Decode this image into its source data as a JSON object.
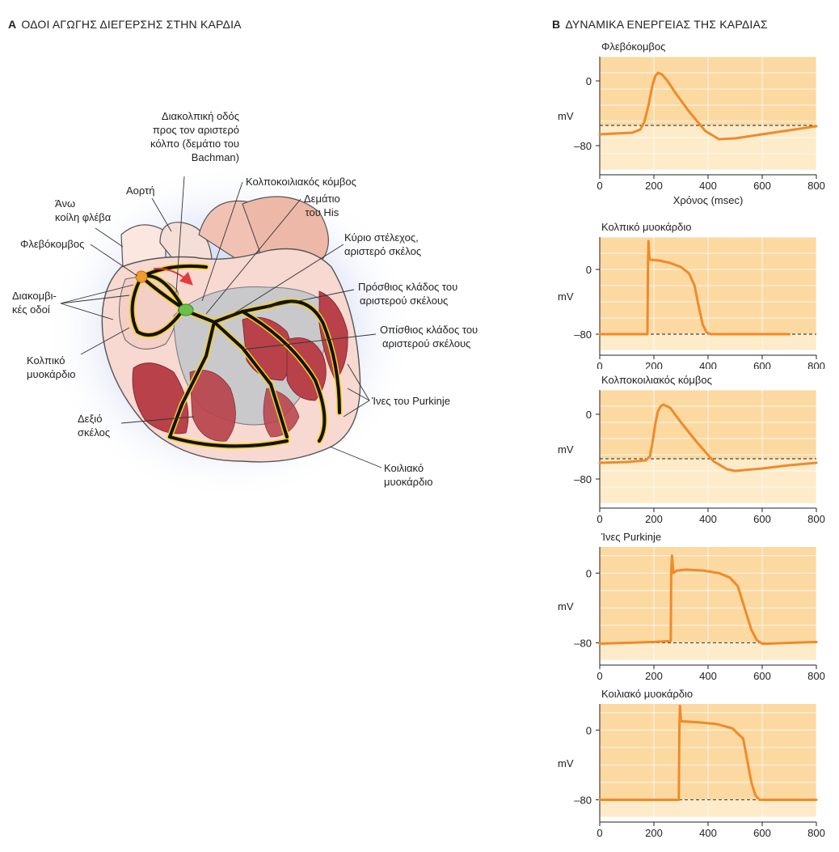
{
  "panel_a": {
    "letter": "A",
    "title": "ΟΔΟΙ ΑΓΩΓΗΣ ΔΙΕΓΕΡΣΗΣ ΣΤΗΝ ΚΑΡΔΙΑ",
    "labels": {
      "bachman_1": "Διακολπική οδός",
      "bachman_2": "προς τον αριστερό",
      "bachman_3": "κόλπο (δεμάτιο του",
      "bachman_4": "Bachman)",
      "aorta": "Αορτή",
      "svc_1": "Άνω",
      "svc_2": "κοίλη φλέβα",
      "sa_node": "Φλεβόκομβος",
      "internodal_1": "Διακομβι-",
      "internodal_2": "κές οδοί",
      "atrial_1": "Κολπικό",
      "atrial_2": "μυοκάρδιο",
      "right_branch_1": "Δεξιό",
      "right_branch_2": "σκέλος",
      "av_node": "Κολποκοιλιακός κόμβος",
      "his_1": "Δεμάτιο",
      "his_2": "του His",
      "left_main_1": "Κύριο στέλεχος,",
      "left_main_2": "αριστερό σκέλος",
      "anterior_1": "Πρόσθιος κλάδος του",
      "anterior_2": "αριστερού σκέλους",
      "posterior_1": "Οπίσθιος κλάδος του",
      "posterior_2": "αριστερού σκέλους",
      "purkinje": "Ίνες του Purkinje",
      "ventricular_1": "Κοιλιακό",
      "ventricular_2": "μυοκάρδιο"
    }
  },
  "panel_b": {
    "letter": "B",
    "title": "ΔΥΝΑΜΙΚΑ ΕΝΕΡΓΕΙΑΣ ΤΗΣ ΚΑΡΔΙΑΣ"
  },
  "colors": {
    "plot_bg": "#fbd9a1",
    "plot_bg_low": "#fdebc9",
    "trace": "#f08a2a",
    "sa_node": "#f39a2e",
    "av_node": "#6cc04a",
    "fiber_yellow": "#f5d21a"
  },
  "chart_data": [
    {
      "type": "line",
      "title": "Φλεβόκομβος",
      "ylabel": "mV",
      "xlabel": "Χρόνος (msec)",
      "yticks": [
        "0",
        "–80"
      ],
      "xticks": [
        "0",
        "200",
        "400",
        "600",
        "800"
      ],
      "xlim": [
        0,
        800
      ],
      "ylim": [
        -110,
        30
      ],
      "threshold": -55,
      "x": [
        0,
        60,
        120,
        150,
        165,
        180,
        195,
        205,
        215,
        230,
        250,
        280,
        330,
        390,
        440,
        500,
        600,
        700,
        800
      ],
      "y": [
        -66,
        -65,
        -64,
        -60,
        -50,
        -30,
        -5,
        6,
        10,
        8,
        0,
        -15,
        -38,
        -62,
        -72,
        -71,
        -66,
        -61,
        -56
      ]
    },
    {
      "type": "line",
      "title": "Κολπικό μυοκάρδιο",
      "ylabel": "mV",
      "xlabel": "",
      "yticks": [
        "0",
        "–80"
      ],
      "xticks": [
        "0",
        "200",
        "400",
        "600",
        "800"
      ],
      "xlim": [
        0,
        800
      ],
      "ylim": [
        -100,
        40
      ],
      "threshold": -80,
      "x": [
        0,
        100,
        176,
        178,
        180,
        184,
        190,
        220,
        260,
        300,
        330,
        350,
        365,
        380,
        395,
        410,
        440,
        500,
        600,
        700
      ],
      "y": [
        -80,
        -80,
        -80,
        0,
        35,
        12,
        12,
        11,
        8,
        3,
        -5,
        -20,
        -45,
        -68,
        -78,
        -80,
        -80,
        -80,
        -80,
        -80
      ]
    },
    {
      "type": "line",
      "title": "Κολποκοιλιακός κόμβος",
      "ylabel": "mV",
      "xlabel": "",
      "yticks": [
        "0",
        "–80"
      ],
      "xticks": [
        "0",
        "200",
        "400",
        "600",
        "800"
      ],
      "xlim": [
        0,
        800
      ],
      "ylim": [
        -110,
        30
      ],
      "threshold": -55,
      "x": [
        0,
        100,
        170,
        185,
        195,
        205,
        215,
        225,
        235,
        260,
        300,
        360,
        420,
        470,
        500,
        600,
        700,
        800
      ],
      "y": [
        -60,
        -59,
        -57,
        -52,
        -35,
        -12,
        4,
        10,
        12,
        8,
        -10,
        -35,
        -58,
        -68,
        -70,
        -67,
        -63,
        -60
      ]
    },
    {
      "type": "line",
      "title": "Ίνες Purkinje",
      "ylabel": "mV",
      "xlabel": "",
      "yticks": [
        "0",
        "–80"
      ],
      "xticks": [
        "0",
        "200",
        "400",
        "600",
        "800"
      ],
      "xlim": [
        0,
        800
      ],
      "ylim": [
        -100,
        30
      ],
      "threshold": -80,
      "x": [
        0,
        100,
        200,
        262,
        264,
        267,
        272,
        285,
        320,
        380,
        440,
        480,
        510,
        535,
        560,
        580,
        600,
        620,
        700,
        800
      ],
      "y": [
        -81,
        -80,
        -79,
        -78,
        0,
        20,
        0,
        3,
        4,
        3,
        0,
        -5,
        -15,
        -40,
        -65,
        -77,
        -81,
        -81,
        -80,
        -79
      ]
    },
    {
      "type": "line",
      "title": "Κοιλιακό μυοκάρδιο",
      "ylabel": "mV",
      "xlabel": "",
      "yticks": [
        "0",
        "–80"
      ],
      "xticks": [
        "0",
        "200",
        "400",
        "600",
        "800"
      ],
      "xlim": [
        0,
        800
      ],
      "ylim": [
        -100,
        30
      ],
      "threshold": -80,
      "x": [
        0,
        100,
        200,
        292,
        294,
        296,
        300,
        305,
        360,
        430,
        490,
        530,
        545,
        560,
        575,
        590,
        610,
        700,
        800
      ],
      "y": [
        -80,
        -80,
        -80,
        -80,
        0,
        28,
        10,
        10,
        9,
        7,
        2,
        -10,
        -35,
        -60,
        -75,
        -80,
        -80,
        -80,
        -80
      ]
    }
  ]
}
